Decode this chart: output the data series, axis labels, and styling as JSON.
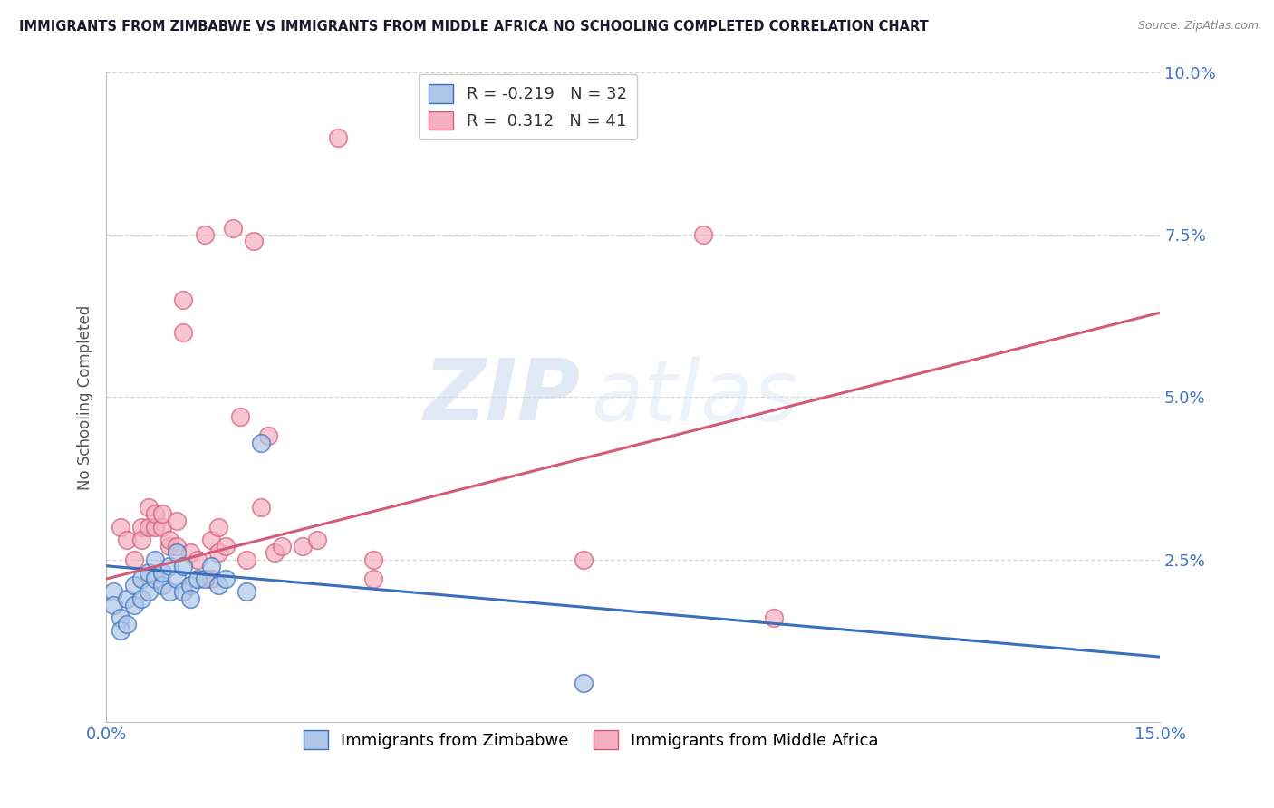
{
  "title": "IMMIGRANTS FROM ZIMBABWE VS IMMIGRANTS FROM MIDDLE AFRICA NO SCHOOLING COMPLETED CORRELATION CHART",
  "source": "Source: ZipAtlas.com",
  "ylabel": "No Schooling Completed",
  "xmin": 0.0,
  "xmax": 0.15,
  "ymin": 0.0,
  "ymax": 0.1,
  "yticks": [
    0.0,
    0.025,
    0.05,
    0.075,
    0.1
  ],
  "ytick_labels": [
    "",
    "2.5%",
    "5.0%",
    "7.5%",
    "10.0%"
  ],
  "xticks": [
    0.0,
    0.025,
    0.05,
    0.075,
    0.1,
    0.125,
    0.15
  ],
  "xtick_labels": [
    "0.0%",
    "",
    "",
    "",
    "",
    "",
    "15.0%"
  ],
  "legend1_R": "-0.219",
  "legend1_N": "32",
  "legend2_R": "0.312",
  "legend2_N": "41",
  "color_blue": "#aec6e8",
  "color_pink": "#f4afc0",
  "line_blue": "#3a6fbc",
  "line_pink": "#d45a78",
  "watermark_zip": "ZIP",
  "watermark_atlas": "atlas",
  "blue_scatter": [
    [
      0.001,
      0.02
    ],
    [
      0.001,
      0.018
    ],
    [
      0.002,
      0.016
    ],
    [
      0.002,
      0.014
    ],
    [
      0.003,
      0.019
    ],
    [
      0.003,
      0.015
    ],
    [
      0.004,
      0.021
    ],
    [
      0.004,
      0.018
    ],
    [
      0.005,
      0.022
    ],
    [
      0.005,
      0.019
    ],
    [
      0.006,
      0.02
    ],
    [
      0.006,
      0.023
    ],
    [
      0.007,
      0.025
    ],
    [
      0.007,
      0.022
    ],
    [
      0.008,
      0.021
    ],
    [
      0.008,
      0.023
    ],
    [
      0.009,
      0.024
    ],
    [
      0.009,
      0.02
    ],
    [
      0.01,
      0.026
    ],
    [
      0.01,
      0.022
    ],
    [
      0.011,
      0.024
    ],
    [
      0.011,
      0.02
    ],
    [
      0.012,
      0.021
    ],
    [
      0.012,
      0.019
    ],
    [
      0.013,
      0.022
    ],
    [
      0.014,
      0.022
    ],
    [
      0.015,
      0.024
    ],
    [
      0.016,
      0.021
    ],
    [
      0.017,
      0.022
    ],
    [
      0.02,
      0.02
    ],
    [
      0.022,
      0.043
    ],
    [
      0.068,
      0.006
    ]
  ],
  "pink_scatter": [
    [
      0.002,
      0.03
    ],
    [
      0.003,
      0.028
    ],
    [
      0.004,
      0.025
    ],
    [
      0.005,
      0.03
    ],
    [
      0.005,
      0.028
    ],
    [
      0.006,
      0.03
    ],
    [
      0.006,
      0.033
    ],
    [
      0.007,
      0.03
    ],
    [
      0.007,
      0.032
    ],
    [
      0.008,
      0.03
    ],
    [
      0.008,
      0.032
    ],
    [
      0.009,
      0.027
    ],
    [
      0.009,
      0.028
    ],
    [
      0.01,
      0.031
    ],
    [
      0.01,
      0.027
    ],
    [
      0.011,
      0.06
    ],
    [
      0.011,
      0.065
    ],
    [
      0.012,
      0.026
    ],
    [
      0.013,
      0.025
    ],
    [
      0.014,
      0.075
    ],
    [
      0.015,
      0.022
    ],
    [
      0.015,
      0.028
    ],
    [
      0.016,
      0.026
    ],
    [
      0.016,
      0.03
    ],
    [
      0.017,
      0.027
    ],
    [
      0.018,
      0.076
    ],
    [
      0.019,
      0.047
    ],
    [
      0.02,
      0.025
    ],
    [
      0.021,
      0.074
    ],
    [
      0.022,
      0.033
    ],
    [
      0.023,
      0.044
    ],
    [
      0.024,
      0.026
    ],
    [
      0.025,
      0.027
    ],
    [
      0.028,
      0.027
    ],
    [
      0.03,
      0.028
    ],
    [
      0.033,
      0.09
    ],
    [
      0.038,
      0.025
    ],
    [
      0.038,
      0.022
    ],
    [
      0.068,
      0.025
    ],
    [
      0.085,
      0.075
    ],
    [
      0.095,
      0.016
    ]
  ],
  "blue_line_x": [
    0.0,
    0.15
  ],
  "blue_line_y": [
    0.024,
    0.01
  ],
  "pink_line_x": [
    0.0,
    0.15
  ],
  "pink_line_y": [
    0.022,
    0.063
  ]
}
